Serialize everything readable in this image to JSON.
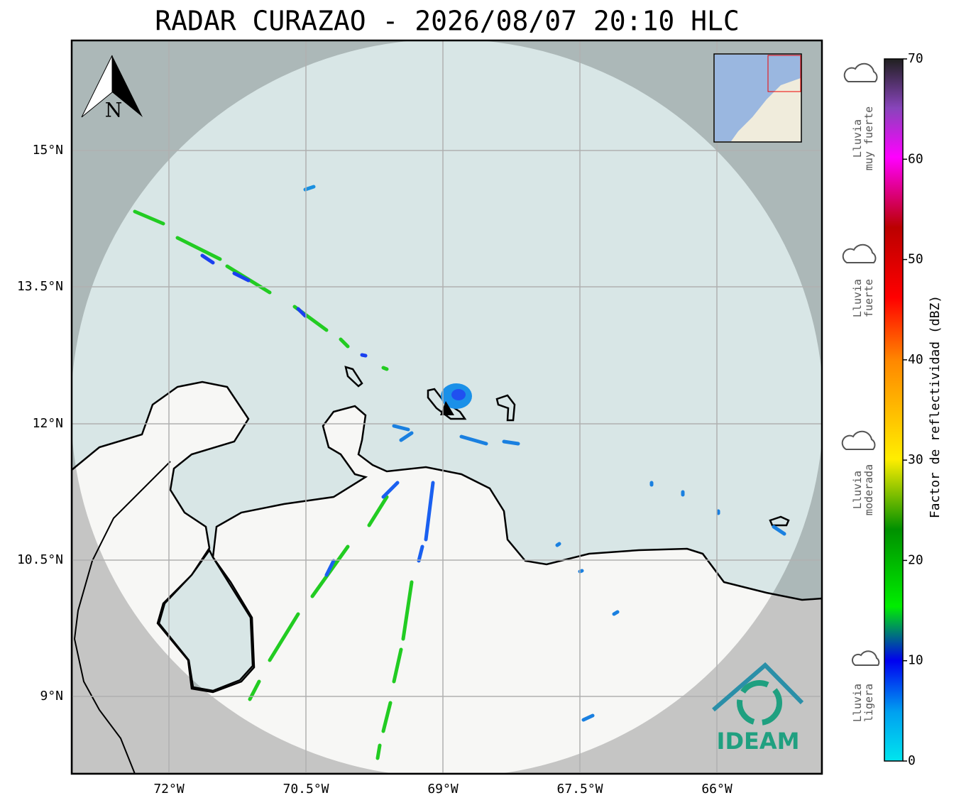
{
  "title": "RADAR CURAZAO - 2026/08/07 20:10 HLC",
  "map": {
    "lat_labels": [
      "15°N",
      "13.5°N",
      "12°N",
      "10.5°N",
      "9°N"
    ],
    "lon_labels": [
      "72°W",
      "70.5°W",
      "69°W",
      "67.5°W",
      "66°W"
    ],
    "north": "N",
    "logo": "IDEAM"
  },
  "colorbar": {
    "label": "Factor de reflectividad (dBZ)",
    "lim": [
      0,
      70
    ],
    "ticks": [
      0,
      10,
      20,
      30,
      40,
      50,
      60,
      70
    ]
  },
  "intensity_labels": [
    [
      "Lluvia",
      "muy fuerte"
    ],
    [
      "Lluvia",
      "fuerte"
    ],
    [
      "Lluvia",
      "moderada"
    ],
    [
      "Lluvia",
      "ligera"
    ]
  ]
}
